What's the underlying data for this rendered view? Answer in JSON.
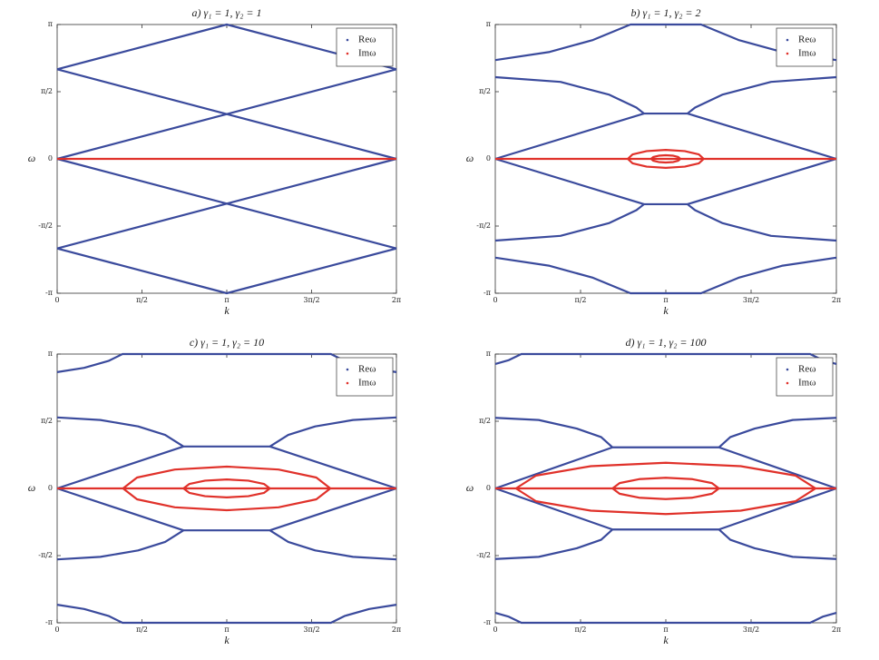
{
  "chart_data": [
    {
      "type": "line",
      "title": "a) γ₁ = 1, γ₂ = 1",
      "xlabel": "k",
      "ylabel": "ω",
      "legend": "upper right",
      "xlim": [
        0,
        6.2832
      ],
      "ylim": [
        -3.1416,
        3.1416
      ],
      "xticks": [
        0,
        {
          "value": 1.5708,
          "label": "π/2"
        },
        {
          "value": 3.1416,
          "label": "π"
        },
        {
          "value": 4.7124,
          "label": "3π/2"
        },
        {
          "value": 6.2832,
          "label": "2π"
        }
      ],
      "yticks": [
        {
          "value": -3.1416,
          "label": "-π"
        },
        {
          "value": -1.5708,
          "label": "-π/2"
        },
        0,
        {
          "value": 1.5708,
          "label": "π/2"
        },
        {
          "value": 3.1416,
          "label": "π"
        }
      ],
      "series": [
        {
          "name": "Reω",
          "color": "#3a4a9c",
          "x": [
            0,
            3.1416,
            6.2832,
            null,
            0,
            6.2832,
            null,
            0,
            6.2832,
            null,
            0,
            3.1416,
            6.2832,
            null,
            0,
            6.2832,
            null,
            0,
            6.2832
          ],
          "values": [
            2.094,
            3.1416,
            2.094,
            null,
            2.094,
            0,
            null,
            0,
            2.094,
            null,
            -2.094,
            -3.1416,
            -2.094,
            null,
            -2.094,
            0,
            null,
            0,
            -2.094
          ]
        },
        {
          "name": "Imω",
          "color": "#e0312a",
          "x": [
            0,
            6.2832
          ],
          "values": [
            0,
            0
          ]
        }
      ]
    },
    {
      "type": "line",
      "title": "b) γ₁ = 1, γ₂ = 2",
      "xlabel": "k",
      "ylabel": "ω",
      "legend": "upper right",
      "xlim": [
        0,
        6.2832
      ],
      "ylim": [
        -3.1416,
        3.1416
      ],
      "xticks": [
        0,
        {
          "value": 1.5708,
          "label": "π/2"
        },
        {
          "value": 3.1416,
          "label": "π"
        },
        {
          "value": 4.7124,
          "label": "3π/2"
        },
        {
          "value": 6.2832,
          "label": "2π"
        }
      ],
      "yticks": [
        {
          "value": -3.1416,
          "label": "-π"
        },
        {
          "value": -1.5708,
          "label": "-π/2"
        },
        0,
        {
          "value": 1.5708,
          "label": "π/2"
        },
        {
          "value": 3.1416,
          "label": "π"
        }
      ],
      "series": [
        {
          "name": "Reω",
          "color": "#3a4a9c",
          "x": [
            0,
            1.0,
            1.8,
            2.49,
            3.79,
            4.48,
            5.28,
            6.2832,
            null,
            0,
            1.2,
            2.1,
            2.6,
            2.74,
            3.54,
            3.68,
            4.18,
            5.08,
            6.2832,
            null,
            0,
            2.74,
            null,
            3.54,
            6.2832,
            null,
            0,
            1.0,
            1.8,
            2.49,
            3.79,
            4.48,
            5.28,
            6.2832,
            null,
            0,
            1.2,
            2.1,
            2.6,
            2.74,
            3.54,
            3.68,
            4.18,
            5.08,
            6.2832,
            null,
            0,
            2.74,
            null,
            3.54,
            6.2832
          ],
          "values": [
            2.31,
            2.5,
            2.78,
            3.1416,
            3.1416,
            2.78,
            2.5,
            2.31,
            null,
            1.91,
            1.8,
            1.5,
            1.2,
            1.06,
            1.06,
            1.2,
            1.5,
            1.8,
            1.91,
            null,
            0,
            1.06,
            null,
            1.06,
            0,
            null,
            -2.31,
            -2.5,
            -2.78,
            -3.1416,
            -3.1416,
            -2.78,
            -2.5,
            -2.31,
            null,
            -1.91,
            -1.8,
            -1.5,
            -1.2,
            -1.06,
            -1.06,
            -1.2,
            -1.5,
            -1.8,
            -1.91,
            null,
            0,
            -1.06,
            null,
            -1.06,
            0
          ]
        },
        {
          "name": "Imω",
          "color": "#e0312a",
          "x": [
            0,
            6.2832,
            null,
            3.84,
            3.75,
            3.49,
            3.14,
            2.79,
            2.53,
            2.44,
            2.53,
            2.79,
            3.14,
            3.49,
            3.75,
            3.84,
            null,
            3.41,
            3.37,
            3.28,
            3.14,
            3.01,
            2.91,
            2.87,
            2.91,
            3.01,
            3.14,
            3.28,
            3.37,
            3.41
          ],
          "values": [
            0,
            0,
            null,
            0,
            0.105,
            0.182,
            0.21,
            0.182,
            0.105,
            0,
            -0.105,
            -0.182,
            -0.21,
            -0.182,
            -0.105,
            0,
            null,
            0,
            0.043,
            0.074,
            0.085,
            0.074,
            0.043,
            0,
            -0.043,
            -0.074,
            -0.085,
            -0.074,
            -0.043,
            0
          ]
        }
      ]
    },
    {
      "type": "line",
      "title": "c) γ₁ = 1, γ₂ = 10",
      "xlabel": "k",
      "ylabel": "ω",
      "legend": "upper right",
      "xlim": [
        0,
        6.2832
      ],
      "ylim": [
        -3.1416,
        3.1416
      ],
      "xticks": [
        0,
        {
          "value": 1.5708,
          "label": "π/2"
        },
        {
          "value": 3.1416,
          "label": "π"
        },
        {
          "value": 4.7124,
          "label": "3π/2"
        },
        {
          "value": 6.2832,
          "label": "2π"
        }
      ],
      "yticks": [
        {
          "value": -3.1416,
          "label": "-π"
        },
        {
          "value": -1.5708,
          "label": "-π/2"
        },
        0,
        {
          "value": 1.5708,
          "label": "π/2"
        },
        {
          "value": 3.1416,
          "label": "π"
        }
      ],
      "series": [
        {
          "name": "Reω",
          "color": "#3a4a9c",
          "x": [
            0,
            0.5,
            0.95,
            1.21,
            5.07,
            5.33,
            5.78,
            6.2832,
            null,
            0,
            0.8,
            1.5,
            2.0,
            2.34,
            3.94,
            4.28,
            4.78,
            5.48,
            6.2832,
            null,
            0,
            2.34,
            null,
            3.94,
            6.2832,
            null,
            0,
            0.5,
            0.95,
            1.21,
            5.07,
            5.33,
            5.78,
            6.2832,
            null,
            0,
            0.8,
            1.5,
            2.0,
            2.34,
            3.94,
            4.28,
            4.78,
            5.48,
            6.2832,
            null,
            0,
            2.34,
            null,
            3.94,
            6.2832
          ],
          "values": [
            2.72,
            2.82,
            2.98,
            3.1416,
            3.1416,
            2.98,
            2.82,
            2.72,
            null,
            1.66,
            1.6,
            1.45,
            1.25,
            0.98,
            0.98,
            1.25,
            1.45,
            1.6,
            1.66,
            null,
            0,
            0.98,
            null,
            0.98,
            0,
            null,
            -2.72,
            -2.82,
            -2.98,
            -3.1416,
            -3.1416,
            -2.98,
            -2.82,
            -2.72,
            null,
            -1.66,
            -1.6,
            -1.45,
            -1.25,
            -0.98,
            -0.98,
            -1.25,
            -1.45,
            -1.6,
            -1.66,
            null,
            0,
            -0.98,
            null,
            -0.98,
            0
          ]
        },
        {
          "name": "Imω",
          "color": "#e0312a",
          "x": [
            0,
            6.2832,
            null,
            5.06,
            4.8,
            4.1,
            3.14,
            2.18,
            1.48,
            1.22,
            1.48,
            2.18,
            3.14,
            4.1,
            4.8,
            5.06,
            null,
            3.94,
            3.83,
            3.54,
            3.14,
            2.74,
            2.45,
            2.34,
            2.45,
            2.74,
            3.14,
            3.54,
            3.83,
            3.94
          ],
          "values": [
            0,
            0,
            null,
            0,
            0.255,
            0.442,
            0.51,
            0.442,
            0.255,
            0,
            -0.255,
            -0.442,
            -0.51,
            -0.442,
            -0.255,
            0,
            null,
            0,
            0.105,
            0.182,
            0.21,
            0.182,
            0.105,
            0,
            -0.105,
            -0.182,
            -0.21,
            -0.182,
            -0.105,
            0
          ]
        }
      ]
    },
    {
      "type": "line",
      "title": "d) γ₁ = 1, γ₂ = 100",
      "xlabel": "k",
      "ylabel": "ω",
      "legend": "upper right",
      "xlim": [
        0,
        6.2832
      ],
      "ylim": [
        -3.1416,
        3.1416
      ],
      "xticks": [
        0,
        {
          "value": 1.5708,
          "label": "π/2"
        },
        {
          "value": 3.1416,
          "label": "π"
        },
        {
          "value": 4.7124,
          "label": "3π/2"
        },
        {
          "value": 6.2832,
          "label": "2π"
        }
      ],
      "yticks": [
        {
          "value": -3.1416,
          "label": "-π"
        },
        {
          "value": -1.5708,
          "label": "-π/2"
        },
        0,
        {
          "value": 1.5708,
          "label": "π/2"
        },
        {
          "value": 3.1416,
          "label": "π"
        }
      ],
      "series": [
        {
          "name": "Reω",
          "color": "#3a4a9c",
          "x": [
            0,
            0.25,
            0.48,
            5.8,
            6.03,
            6.2832,
            null,
            0,
            0.8,
            1.5,
            1.95,
            2.16,
            4.12,
            4.33,
            4.78,
            5.48,
            6.2832,
            null,
            0,
            2.16,
            null,
            4.12,
            6.2832,
            null,
            0,
            0.25,
            0.48,
            5.8,
            6.03,
            6.2832,
            null,
            0,
            0.8,
            1.5,
            1.95,
            2.16,
            4.12,
            4.33,
            4.78,
            5.48,
            6.2832,
            null,
            0,
            2.16,
            null,
            4.12,
            6.2832
          ],
          "values": [
            2.91,
            3.0,
            3.1416,
            3.1416,
            3.0,
            2.91,
            null,
            1.65,
            1.6,
            1.4,
            1.2,
            0.96,
            0.96,
            1.2,
            1.4,
            1.6,
            1.65,
            null,
            0,
            0.96,
            null,
            0.96,
            0,
            null,
            -2.91,
            -3.0,
            -3.1416,
            -3.1416,
            -3.0,
            -2.91,
            null,
            -1.65,
            -1.6,
            -1.4,
            -1.2,
            -0.96,
            -0.96,
            -1.2,
            -1.4,
            -1.6,
            -1.65,
            null,
            0,
            -0.96,
            null,
            -0.96,
            0
          ]
        },
        {
          "name": "Imω",
          "color": "#e0312a",
          "x": [
            0,
            6.2832,
            null,
            5.9,
            5.53,
            4.52,
            3.14,
            1.76,
            0.75,
            0.38,
            0.75,
            1.76,
            3.14,
            4.52,
            5.53,
            5.9,
            null,
            4.12,
            3.99,
            3.63,
            3.14,
            2.65,
            2.29,
            2.16,
            2.29,
            2.65,
            3.14,
            3.63,
            3.99,
            4.12
          ],
          "values": [
            0,
            0,
            null,
            0,
            0.3,
            0.52,
            0.6,
            0.52,
            0.3,
            0,
            -0.3,
            -0.52,
            -0.6,
            -0.52,
            -0.3,
            0,
            null,
            0,
            0.125,
            0.217,
            0.25,
            0.217,
            0.125,
            0,
            -0.125,
            -0.217,
            -0.25,
            -0.217,
            -0.125,
            0
          ]
        }
      ]
    }
  ]
}
